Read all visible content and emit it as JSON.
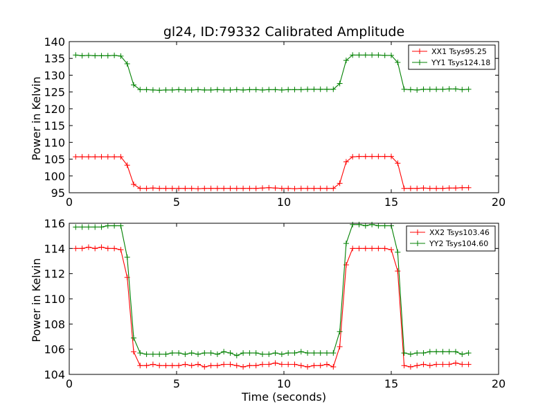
{
  "chart_data": [
    {
      "type": "line",
      "title": "gl24, ID:79332 Calibrated Amplitude",
      "xlabel": "",
      "ylabel": "Power in Kelvin",
      "xlim": [
        0,
        20
      ],
      "ylim": [
        95,
        140
      ],
      "xticks": [
        0,
        5,
        10,
        15,
        20
      ],
      "yticks": [
        95,
        100,
        105,
        110,
        115,
        120,
        125,
        130,
        135,
        140
      ],
      "grid": false,
      "legend_position": "top-right",
      "marker": "+",
      "x": [
        0.3,
        0.6,
        0.9,
        1.2,
        1.5,
        1.8,
        2.1,
        2.4,
        2.7,
        3.0,
        3.3,
        3.6,
        3.9,
        4.2,
        4.5,
        4.8,
        5.1,
        5.4,
        5.7,
        6.0,
        6.3,
        6.6,
        6.9,
        7.2,
        7.5,
        7.8,
        8.1,
        8.4,
        8.7,
        9.0,
        9.3,
        9.6,
        9.9,
        10.2,
        10.5,
        10.8,
        11.1,
        11.4,
        11.7,
        12.0,
        12.3,
        12.6,
        12.9,
        13.2,
        13.5,
        13.8,
        14.1,
        14.4,
        14.7,
        15.0,
        15.3,
        15.6,
        15.9,
        16.2,
        16.5,
        16.8,
        17.1,
        17.4,
        17.7,
        18.0,
        18.3,
        18.6
      ],
      "series": [
        {
          "name": "XX1 Tsys95.25",
          "color": "#ff0000",
          "values": [
            105.7,
            105.7,
            105.7,
            105.7,
            105.7,
            105.7,
            105.7,
            105.7,
            103.2,
            97.5,
            96.3,
            96.3,
            96.4,
            96.3,
            96.3,
            96.3,
            96.3,
            96.3,
            96.3,
            96.2,
            96.3,
            96.3,
            96.3,
            96.3,
            96.3,
            96.3,
            96.3,
            96.3,
            96.3,
            96.4,
            96.5,
            96.4,
            96.3,
            96.3,
            96.2,
            96.3,
            96.3,
            96.3,
            96.3,
            96.3,
            96.3,
            97.8,
            104.2,
            105.7,
            105.8,
            105.8,
            105.8,
            105.8,
            105.8,
            105.8,
            103.8,
            96.3,
            96.3,
            96.3,
            96.4,
            96.3,
            96.3,
            96.3,
            96.4,
            96.4,
            96.5,
            96.5
          ]
        },
        {
          "name": "YY1 Tsys124.18",
          "color": "#008000",
          "values": [
            136.0,
            135.8,
            135.9,
            135.8,
            135.8,
            135.8,
            135.9,
            135.7,
            133.4,
            127.1,
            125.7,
            125.7,
            125.6,
            125.5,
            125.6,
            125.6,
            125.7,
            125.6,
            125.6,
            125.7,
            125.6,
            125.6,
            125.7,
            125.6,
            125.6,
            125.7,
            125.6,
            125.7,
            125.7,
            125.6,
            125.7,
            125.7,
            125.6,
            125.7,
            125.7,
            125.7,
            125.8,
            125.8,
            125.8,
            125.8,
            125.8,
            127.5,
            134.4,
            136.0,
            136.0,
            136.0,
            136.0,
            136.0,
            135.9,
            135.9,
            133.8,
            125.8,
            125.7,
            125.6,
            125.8,
            125.8,
            125.8,
            125.8,
            125.9,
            125.9,
            125.7,
            125.8
          ]
        }
      ]
    },
    {
      "type": "line",
      "title": "",
      "xlabel": "Time (seconds)",
      "ylabel": "Power in Kelvin",
      "xlim": [
        0,
        20
      ],
      "ylim": [
        104,
        116
      ],
      "xticks": [
        0,
        5,
        10,
        15,
        20
      ],
      "yticks": [
        104,
        106,
        108,
        110,
        112,
        114,
        116
      ],
      "grid": false,
      "legend_position": "top-right",
      "marker": "+",
      "x": [
        0.3,
        0.6,
        0.9,
        1.2,
        1.5,
        1.8,
        2.1,
        2.4,
        2.7,
        3.0,
        3.3,
        3.6,
        3.9,
        4.2,
        4.5,
        4.8,
        5.1,
        5.4,
        5.7,
        6.0,
        6.3,
        6.6,
        6.9,
        7.2,
        7.5,
        7.8,
        8.1,
        8.4,
        8.7,
        9.0,
        9.3,
        9.6,
        9.9,
        10.2,
        10.5,
        10.8,
        11.1,
        11.4,
        11.7,
        12.0,
        12.3,
        12.6,
        12.9,
        13.2,
        13.5,
        13.8,
        14.1,
        14.4,
        14.7,
        15.0,
        15.3,
        15.6,
        15.9,
        16.2,
        16.5,
        16.8,
        17.1,
        17.4,
        17.7,
        18.0,
        18.3,
        18.6
      ],
      "series": [
        {
          "name": "XX2 Tsys103.46",
          "color": "#ff0000",
          "values": [
            114.0,
            114.0,
            114.1,
            114.0,
            114.1,
            114.0,
            114.0,
            113.9,
            111.7,
            105.8,
            104.7,
            104.7,
            104.8,
            104.7,
            104.7,
            104.7,
            104.7,
            104.8,
            104.7,
            104.8,
            104.6,
            104.7,
            104.7,
            104.8,
            104.8,
            104.7,
            104.6,
            104.7,
            104.7,
            104.8,
            104.8,
            104.9,
            104.8,
            104.8,
            104.8,
            104.7,
            104.6,
            104.7,
            104.7,
            104.8,
            104.6,
            106.2,
            112.7,
            114.0,
            114.0,
            114.0,
            114.0,
            114.0,
            114.0,
            113.9,
            112.2,
            104.7,
            104.6,
            104.7,
            104.8,
            104.7,
            104.8,
            104.8,
            104.8,
            104.9,
            104.8,
            104.8
          ]
        },
        {
          "name": "YY2 Tsys104.60",
          "color": "#008000",
          "values": [
            115.7,
            115.7,
            115.7,
            115.7,
            115.7,
            115.8,
            115.8,
            115.8,
            113.3,
            106.9,
            105.7,
            105.6,
            105.6,
            105.6,
            105.6,
            105.7,
            105.7,
            105.6,
            105.7,
            105.6,
            105.7,
            105.7,
            105.6,
            105.8,
            105.7,
            105.5,
            105.7,
            105.7,
            105.7,
            105.6,
            105.6,
            105.7,
            105.6,
            105.7,
            105.7,
            105.8,
            105.7,
            105.7,
            105.7,
            105.7,
            105.7,
            107.4,
            114.4,
            115.9,
            115.9,
            115.8,
            115.9,
            115.8,
            115.8,
            115.8,
            113.7,
            105.7,
            105.6,
            105.7,
            105.7,
            105.8,
            105.8,
            105.8,
            105.8,
            105.8,
            105.6,
            105.7
          ]
        }
      ]
    }
  ]
}
